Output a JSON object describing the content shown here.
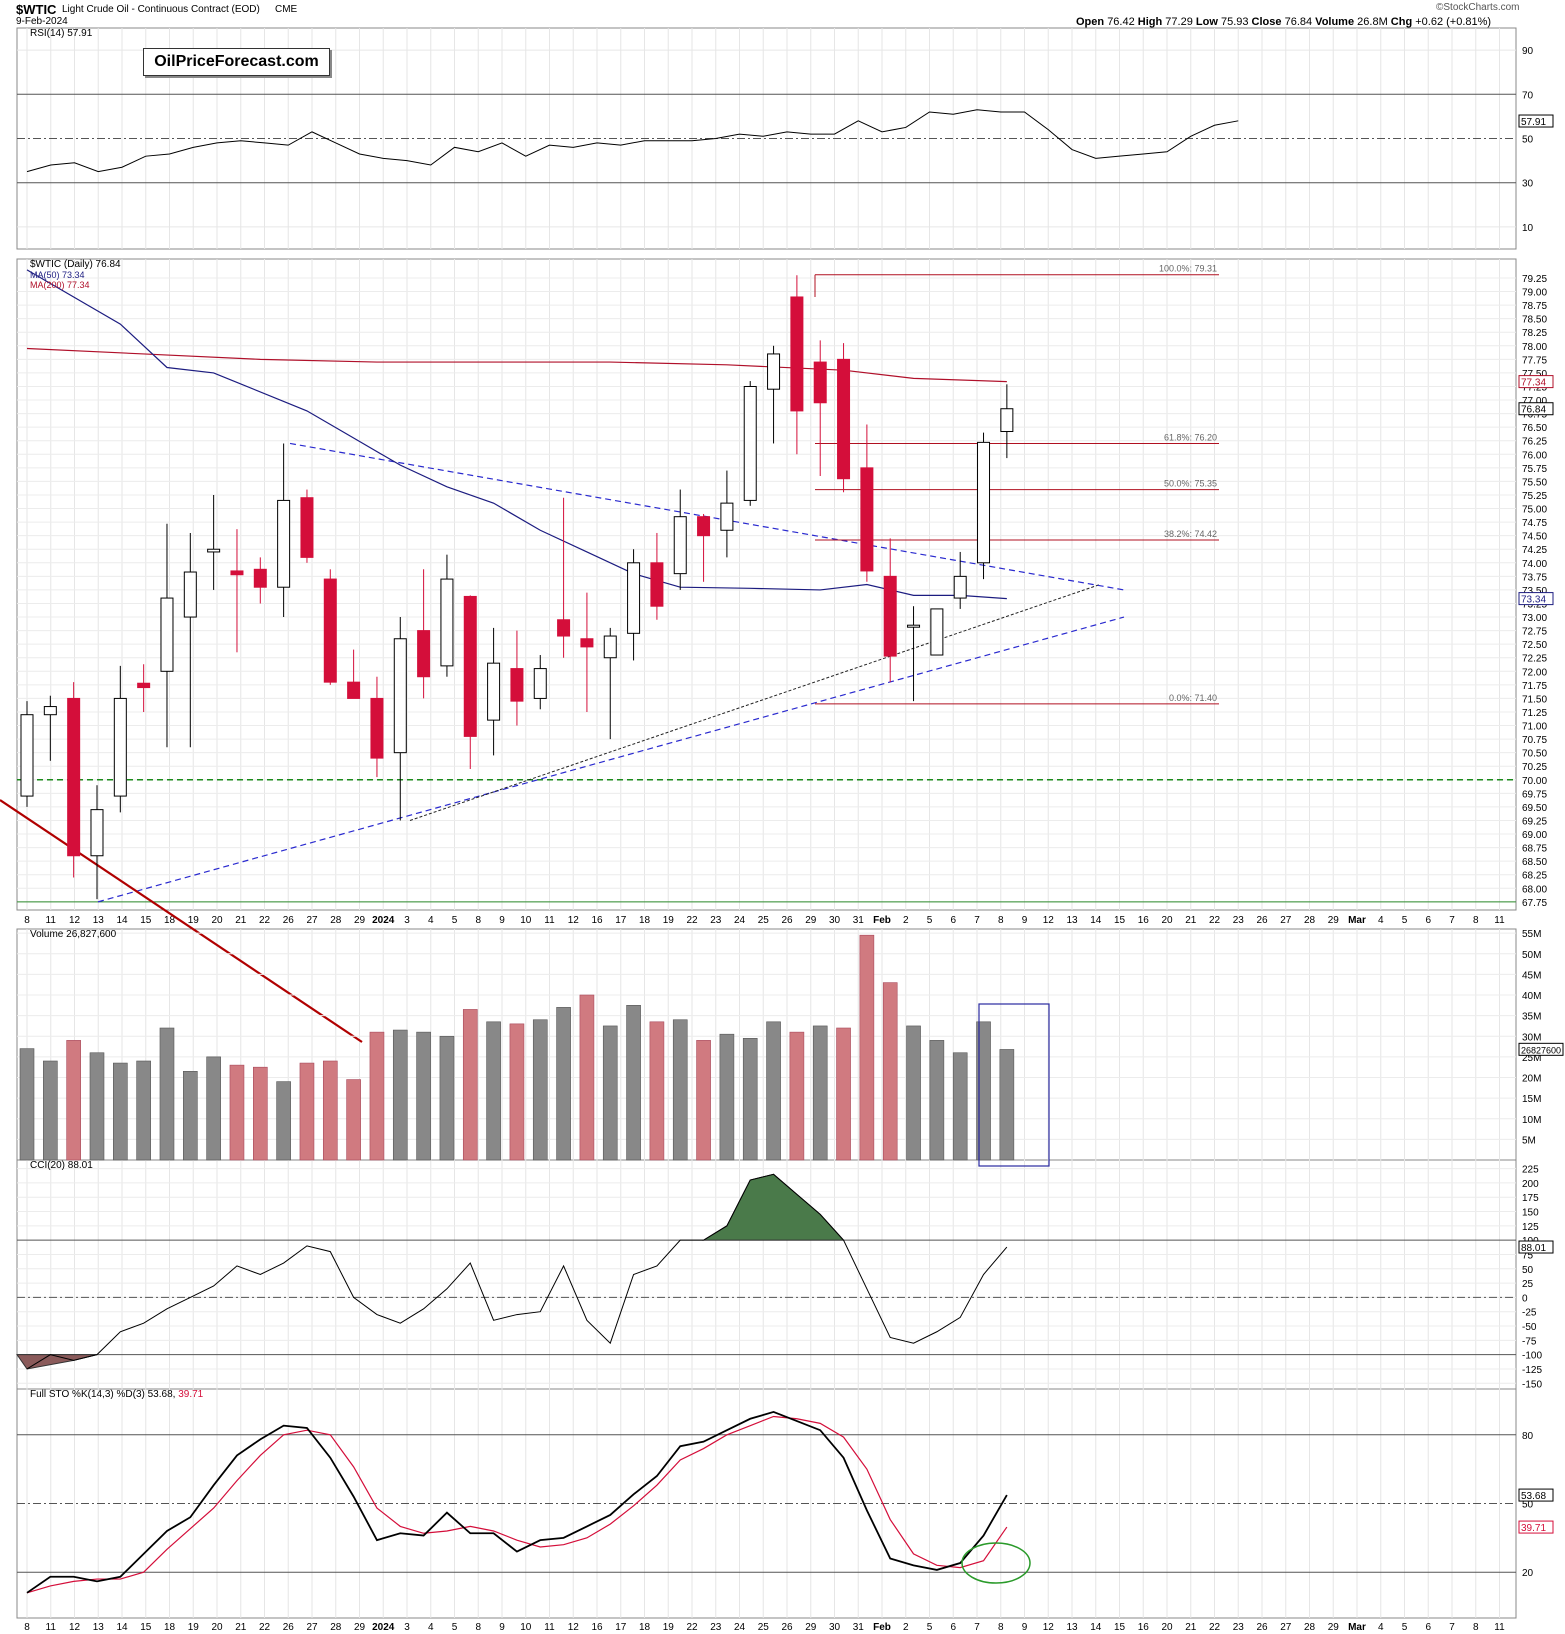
{
  "header": {
    "symbol": "$WTIC",
    "description": "Light Crude Oil - Continuous Contract (EOD)",
    "exchange": "CME",
    "date": "9-Feb-2024",
    "watermark": "©StockCharts.com",
    "open_label": "Open",
    "open": "76.42",
    "high_label": "High",
    "high": "77.29",
    "low_label": "Low",
    "low": "75.93",
    "close_label": "Close",
    "close": "76.84",
    "volume_label": "Volume",
    "volume": "26.8M",
    "chg_label": "Chg",
    "chg": "+0.62 (+0.81%)"
  },
  "logo_text": "OilPriceForecast.com",
  "colors": {
    "up": "#ffffff",
    "down": "#d40e3a",
    "ma50": "#1c1c80",
    "ma200": "#b0102a",
    "zone": "#9fd49a",
    "vol_up": "#888888",
    "vol_down": "#d07a80",
    "fib": "#b01020"
  },
  "chart_data": [
    {
      "panel": "RSI",
      "type": "line",
      "legend": "RSI(14) 57.91",
      "current_label": "57.91",
      "ylim": [
        0,
        100
      ],
      "ticks": [
        "90",
        "70",
        "50",
        "30",
        "10"
      ],
      "values": [
        35,
        38,
        39,
        35,
        37,
        42,
        43,
        46,
        48,
        49,
        48,
        47,
        53,
        48,
        43,
        41,
        40,
        38,
        46,
        44,
        48,
        42,
        47,
        46,
        48,
        47,
        49,
        49,
        49,
        50,
        52,
        51,
        53,
        52,
        52,
        58,
        53,
        55,
        62,
        61,
        63,
        62,
        62,
        54,
        45,
        41,
        42,
        43,
        44,
        51,
        56,
        58
      ]
    },
    {
      "panel": "Price",
      "type": "candlestick",
      "legend": "$WTIC (Daily) 76.84",
      "ma50_legend": "MA(50) 73.34",
      "ma200_legend": "MA(200) 77.34",
      "current_labels": [
        "77.34",
        "76.84",
        "73.34"
      ],
      "ylim": [
        67.6,
        79.6
      ],
      "ticks": [
        "79.25",
        "79.00",
        "78.75",
        "78.50",
        "78.25",
        "78.00",
        "77.75",
        "77.50",
        "77.25",
        "77.00",
        "76.75",
        "76.50",
        "76.25",
        "76.00",
        "75.75",
        "75.50",
        "75.25",
        "75.00",
        "74.75",
        "74.50",
        "74.25",
        "74.00",
        "73.75",
        "73.50",
        "73.25",
        "73.00",
        "72.75",
        "72.50",
        "72.25",
        "72.00",
        "71.75",
        "71.50",
        "71.25",
        "71.00",
        "70.75",
        "70.50",
        "70.25",
        "70.00",
        "69.75",
        "69.50",
        "69.25",
        "69.00",
        "68.75",
        "68.50",
        "68.25",
        "68.00",
        "67.75"
      ],
      "x_dates": [
        "8",
        "11",
        "12",
        "13",
        "14",
        "15",
        "18",
        "19",
        "20",
        "21",
        "22",
        "26",
        "27",
        "28",
        "29",
        "2024",
        "3",
        "4",
        "5",
        "8",
        "9",
        "10",
        "11",
        "12",
        "16",
        "17",
        "18",
        "19",
        "22",
        "23",
        "24",
        "25",
        "26",
        "29",
        "30",
        "31",
        "Feb",
        "2",
        "5",
        "6",
        "7",
        "8",
        "9",
        "12",
        "13",
        "14",
        "15",
        "16",
        "20",
        "21",
        "22",
        "23",
        "26",
        "27",
        "28",
        "29",
        "Mar",
        "4",
        "5",
        "6",
        "7",
        "8",
        "11"
      ],
      "candles": [
        {
          "o": 69.7,
          "h": 71.45,
          "l": 69.5,
          "c": 71.2
        },
        {
          "o": 71.2,
          "h": 71.55,
          "l": 70.35,
          "c": 71.35
        },
        {
          "o": 71.5,
          "h": 71.8,
          "l": 68.2,
          "c": 68.6
        },
        {
          "o": 68.6,
          "h": 69.9,
          "l": 67.8,
          "c": 69.45
        },
        {
          "o": 69.7,
          "h": 72.1,
          "l": 69.4,
          "c": 71.5
        },
        {
          "o": 71.78,
          "h": 72.13,
          "l": 71.25,
          "c": 71.7
        },
        {
          "o": 72.0,
          "h": 74.72,
          "l": 70.6,
          "c": 73.35
        },
        {
          "o": 73.0,
          "h": 74.55,
          "l": 70.6,
          "c": 73.83
        },
        {
          "o": 74.2,
          "h": 75.25,
          "l": 73.5,
          "c": 74.25
        },
        {
          "o": 73.85,
          "h": 74.62,
          "l": 72.35,
          "c": 73.78
        },
        {
          "o": 73.88,
          "h": 74.1,
          "l": 73.25,
          "c": 73.55
        },
        {
          "o": 73.55,
          "h": 76.2,
          "l": 73.0,
          "c": 75.15
        },
        {
          "o": 75.2,
          "h": 75.35,
          "l": 74.0,
          "c": 74.1
        },
        {
          "o": 73.7,
          "h": 73.88,
          "l": 71.75,
          "c": 71.8
        },
        {
          "o": 71.8,
          "h": 72.4,
          "l": 71.5,
          "c": 71.5
        },
        {
          "o": 71.5,
          "h": 71.9,
          "l": 70.05,
          "c": 70.4
        },
        {
          "o": 70.5,
          "h": 73.0,
          "l": 69.25,
          "c": 72.6
        },
        {
          "o": 72.75,
          "h": 73.88,
          "l": 71.5,
          "c": 71.9
        },
        {
          "o": 72.1,
          "h": 74.15,
          "l": 71.9,
          "c": 73.7
        },
        {
          "o": 73.38,
          "h": 73.4,
          "l": 70.2,
          "c": 70.8
        },
        {
          "o": 71.1,
          "h": 72.8,
          "l": 70.45,
          "c": 72.15
        },
        {
          "o": 72.05,
          "h": 72.75,
          "l": 71.0,
          "c": 71.45
        },
        {
          "o": 71.5,
          "h": 72.3,
          "l": 71.3,
          "c": 72.05
        },
        {
          "o": 72.95,
          "h": 75.2,
          "l": 72.25,
          "c": 72.65
        },
        {
          "o": 72.6,
          "h": 73.45,
          "l": 71.25,
          "c": 72.45
        },
        {
          "o": 72.25,
          "h": 72.8,
          "l": 70.75,
          "c": 72.65
        },
        {
          "o": 72.7,
          "h": 74.25,
          "l": 72.2,
          "c": 74.0
        },
        {
          "o": 74.0,
          "h": 74.55,
          "l": 72.95,
          "c": 73.2
        },
        {
          "o": 73.8,
          "h": 75.35,
          "l": 73.5,
          "c": 74.85
        },
        {
          "o": 74.85,
          "h": 74.9,
          "l": 73.65,
          "c": 74.5
        },
        {
          "o": 74.6,
          "h": 75.7,
          "l": 74.1,
          "c": 75.1
        },
        {
          "o": 75.15,
          "h": 77.35,
          "l": 75.05,
          "c": 77.25
        },
        {
          "o": 77.2,
          "h": 78.0,
          "l": 76.2,
          "c": 77.85
        },
        {
          "o": 78.9,
          "h": 79.3,
          "l": 76.0,
          "c": 76.8
        },
        {
          "o": 77.7,
          "h": 78.1,
          "l": 75.6,
          "c": 76.95
        },
        {
          "o": 77.75,
          "h": 78.05,
          "l": 75.3,
          "c": 75.55
        },
        {
          "o": 75.75,
          "h": 76.55,
          "l": 73.65,
          "c": 73.85
        },
        {
          "o": 73.75,
          "h": 74.45,
          "l": 71.8,
          "c": 72.28
        },
        {
          "o": 72.85,
          "h": 73.2,
          "l": 71.45,
          "c": 72.85
        },
        {
          "o": 72.3,
          "h": 73.05,
          "l": 72.3,
          "c": 73.15
        },
        {
          "o": 73.35,
          "h": 74.2,
          "l": 73.15,
          "c": 73.75
        },
        {
          "o": 74.0,
          "h": 76.4,
          "l": 73.7,
          "c": 76.22
        },
        {
          "o": 76.42,
          "h": 77.29,
          "l": 75.93,
          "c": 76.84
        }
      ],
      "ma50": [
        [
          0,
          79.4
        ],
        [
          4,
          78.4
        ],
        [
          6,
          77.6
        ],
        [
          8,
          77.5
        ],
        [
          12,
          76.8
        ],
        [
          14,
          76.3
        ],
        [
          16,
          75.8
        ],
        [
          18,
          75.4
        ],
        [
          20,
          75.1
        ],
        [
          22,
          74.6
        ],
        [
          24,
          74.2
        ],
        [
          26,
          73.8
        ],
        [
          28,
          73.55
        ],
        [
          31,
          73.53
        ],
        [
          34,
          73.5
        ],
        [
          36,
          73.6
        ],
        [
          38,
          73.4
        ],
        [
          40,
          73.4
        ],
        [
          42,
          73.34
        ]
      ],
      "ma200": [
        [
          0,
          77.95
        ],
        [
          5,
          77.85
        ],
        [
          10,
          77.75
        ],
        [
          15,
          77.7
        ],
        [
          20,
          77.7
        ],
        [
          25,
          77.7
        ],
        [
          30,
          77.65
        ],
        [
          35,
          77.55
        ],
        [
          38,
          77.4
        ],
        [
          42,
          77.34
        ]
      ],
      "fib": [
        {
          "label": "100.0%: 79.31",
          "value": 79.31
        },
        {
          "label": "61.8%: 76.20",
          "value": 76.2
        },
        {
          "label": "50.0%: 75.35",
          "value": 75.35
        },
        {
          "label": "38.2%: 74.42",
          "value": 74.42
        },
        {
          "label": "0.0%: 71.40",
          "value": 71.4
        }
      ],
      "support_level": 70.0
    },
    {
      "panel": "Volume",
      "type": "bar",
      "legend": "Volume 26,827,600",
      "current_label": "26827600",
      "ylim": [
        0,
        56000000
      ],
      "ticks": [
        "55M",
        "50M",
        "45M",
        "40M",
        "35M",
        "30M",
        "25M",
        "20M",
        "15M",
        "10M",
        "5M"
      ],
      "values": [
        27,
        24,
        29,
        26,
        23.5,
        24,
        32,
        21.5,
        25,
        23,
        22.5,
        19,
        23.5,
        24,
        19.5,
        31,
        31.5,
        31,
        30,
        36.5,
        33.5,
        33,
        34,
        37,
        40,
        32.5,
        37.5,
        33.5,
        34,
        29,
        30.5,
        29.5,
        33.5,
        31,
        32.5,
        32,
        54.5,
        43,
        32.5,
        29,
        26,
        33.5,
        26.8
      ],
      "up": [
        true,
        true,
        false,
        true,
        true,
        true,
        true,
        true,
        true,
        false,
        false,
        true,
        false,
        false,
        false,
        false,
        true,
        true,
        true,
        false,
        true,
        false,
        true,
        true,
        false,
        true,
        true,
        false,
        true,
        false,
        true,
        true,
        true,
        false,
        true,
        false,
        false,
        false,
        true,
        true,
        true,
        true,
        true
      ]
    },
    {
      "panel": "CCI",
      "type": "line",
      "legend": "CCI(20) 88.01",
      "current_label": "88.01",
      "ylim": [
        -160,
        240
      ],
      "ticks": [
        "225",
        "200",
        "175",
        "150",
        "125",
        "100",
        "75",
        "50",
        "25",
        "0",
        "-25",
        "-50",
        "-75",
        "-100",
        "-125",
        "-150"
      ],
      "values": [
        -125,
        -100,
        -110,
        -100,
        -60,
        -45,
        -20,
        0,
        20,
        55,
        40,
        60,
        90,
        80,
        0,
        -30,
        -45,
        -20,
        15,
        60,
        -40,
        -30,
        -25,
        55,
        -40,
        -80,
        40,
        55,
        100,
        100,
        125,
        205,
        215,
        180,
        145,
        100,
        15,
        -70,
        -80,
        -60,
        -35,
        40,
        88.01
      ]
    },
    {
      "panel": "Stochastic",
      "type": "line",
      "legend": "Full STO %K(14,3) %D(3)",
      "k_value": "53.68",
      "d_value": "39.71",
      "current_labels": [
        "53.68",
        "39.71"
      ],
      "ylim": [
        0,
        100
      ],
      "ticks": [
        "80",
        "50",
        "20"
      ],
      "k": [
        11,
        18,
        18,
        16,
        18,
        28,
        38,
        44,
        58,
        71,
        78,
        84,
        83,
        70,
        53,
        34,
        37,
        36,
        46,
        37,
        37,
        29,
        34,
        35,
        40,
        45,
        54,
        62,
        75,
        77,
        82,
        87,
        90,
        86,
        82,
        70,
        47,
        26,
        23,
        21,
        24,
        36,
        53.68
      ],
      "d": [
        11,
        14,
        16,
        17,
        17,
        20,
        30,
        39,
        48,
        60,
        71,
        80,
        82,
        80,
        66,
        48,
        40,
        37,
        38,
        40,
        38,
        34,
        31,
        32,
        35,
        41,
        49,
        58,
        69,
        74,
        80,
        84,
        88,
        87,
        85,
        79,
        65,
        43,
        28,
        23,
        22,
        25,
        39.71
      ]
    }
  ]
}
